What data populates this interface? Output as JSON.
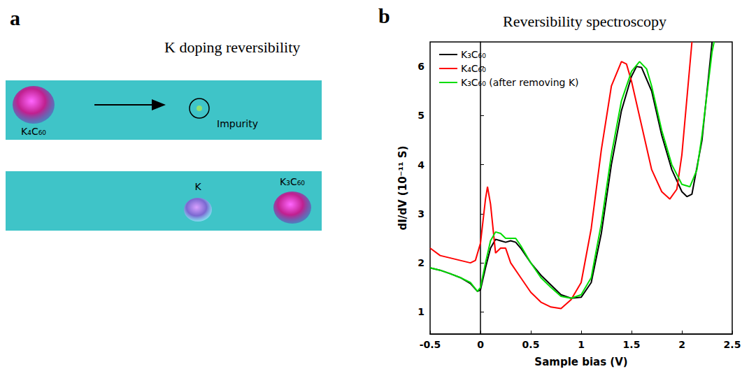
{
  "panel_a": {
    "letter": "a",
    "title": "K doping reversibility",
    "top_image": {
      "labels": [
        "K₄C₆₀",
        "Impurity"
      ]
    },
    "bottom_image": {
      "labels": [
        "K",
        "K₃C₆₀"
      ]
    }
  },
  "chart_data": {
    "letter": "b",
    "type": "line",
    "title": "Reversibility spectroscopy",
    "x_label": "Sample bias (V)",
    "y_label": "dI/dV (10⁻¹¹ S)",
    "xlim": [
      -0.5,
      2.5
    ],
    "xticks": [
      -0.5,
      0,
      0.5,
      1,
      1.5,
      2,
      2.5
    ],
    "ylim": [
      0.55,
      6.5
    ],
    "yticks": [
      1,
      2,
      3,
      4,
      5,
      6
    ],
    "grid": false,
    "legend": "upper left",
    "series": [
      {
        "name": "K₃C₆₀",
        "color": "#000000",
        "x": [
          -0.5,
          -0.4,
          -0.3,
          -0.2,
          -0.1,
          -0.03,
          0,
          0.05,
          0.1,
          0.15,
          0.2,
          0.25,
          0.3,
          0.35,
          0.4,
          0.5,
          0.6,
          0.7,
          0.8,
          0.9,
          1.0,
          1.1,
          1.2,
          1.3,
          1.4,
          1.5,
          1.55,
          1.6,
          1.7,
          1.8,
          1.9,
          2.0,
          2.05,
          2.1,
          2.2,
          2.3
        ],
        "values": [
          1.9,
          1.85,
          1.78,
          1.7,
          1.58,
          1.42,
          1.45,
          1.9,
          2.3,
          2.48,
          2.45,
          2.42,
          2.45,
          2.42,
          2.3,
          2.0,
          1.75,
          1.55,
          1.35,
          1.28,
          1.3,
          1.6,
          2.6,
          4.0,
          5.1,
          5.8,
          6.0,
          5.98,
          5.5,
          4.6,
          3.9,
          3.45,
          3.35,
          3.4,
          4.5,
          6.5
        ]
      },
      {
        "name": "K₄C₆₀",
        "color": "#ff0000",
        "x": [
          -0.5,
          -0.4,
          -0.3,
          -0.2,
          -0.1,
          -0.05,
          0,
          0.05,
          0.07,
          0.1,
          0.15,
          0.2,
          0.25,
          0.3,
          0.4,
          0.5,
          0.6,
          0.7,
          0.8,
          0.9,
          1.0,
          1.1,
          1.2,
          1.3,
          1.4,
          1.45,
          1.5,
          1.6,
          1.7,
          1.8,
          1.88,
          1.95,
          2.0,
          2.1
        ],
        "values": [
          2.3,
          2.15,
          2.1,
          2.05,
          2.0,
          2.05,
          2.4,
          3.3,
          3.55,
          3.2,
          2.2,
          2.3,
          2.3,
          2.0,
          1.7,
          1.4,
          1.2,
          1.1,
          1.07,
          1.25,
          1.6,
          2.7,
          4.3,
          5.6,
          6.1,
          6.05,
          5.7,
          4.8,
          3.9,
          3.45,
          3.3,
          3.5,
          4.2,
          6.5
        ]
      },
      {
        "name": "K₃C₆₀ (after removing K)",
        "color": "#00dd00",
        "x": [
          -0.5,
          -0.4,
          -0.3,
          -0.2,
          -0.1,
          -0.03,
          0,
          0.05,
          0.1,
          0.15,
          0.2,
          0.25,
          0.3,
          0.35,
          0.4,
          0.5,
          0.6,
          0.7,
          0.8,
          0.9,
          1.0,
          1.1,
          1.2,
          1.3,
          1.4,
          1.5,
          1.58,
          1.65,
          1.7,
          1.8,
          1.9,
          2.0,
          2.08,
          2.15,
          2.2,
          2.3,
          2.32
        ],
        "values": [
          1.9,
          1.85,
          1.78,
          1.7,
          1.6,
          1.42,
          1.5,
          2.0,
          2.45,
          2.63,
          2.6,
          2.5,
          2.5,
          2.5,
          2.35,
          2.0,
          1.7,
          1.5,
          1.32,
          1.28,
          1.35,
          1.7,
          2.8,
          4.2,
          5.3,
          5.9,
          6.1,
          5.95,
          5.6,
          4.7,
          4.0,
          3.6,
          3.55,
          3.9,
          4.6,
          6.3,
          6.5
        ]
      }
    ]
  }
}
